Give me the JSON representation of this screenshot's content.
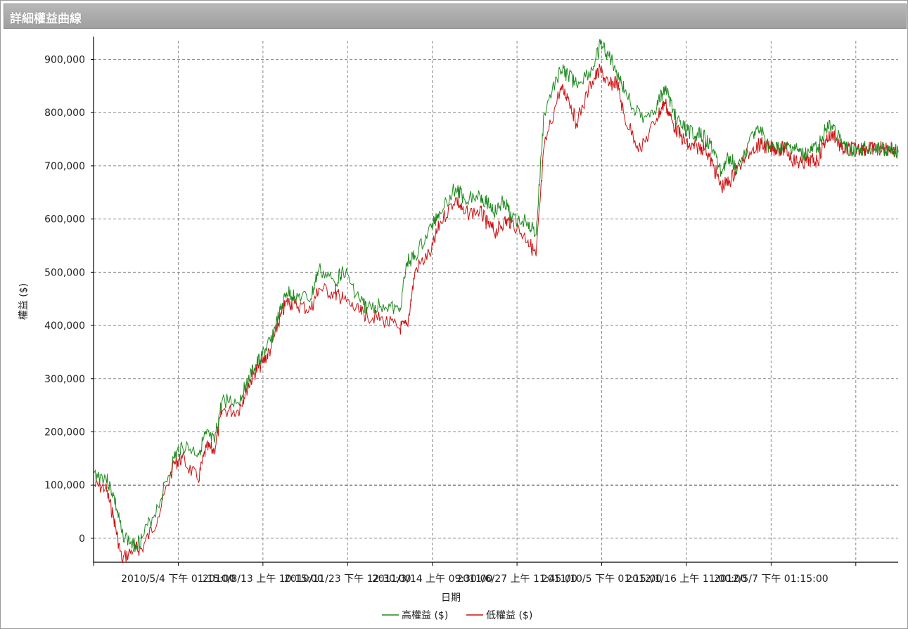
{
  "window": {
    "title": "詳細權益曲線"
  },
  "chart_data": {
    "type": "line",
    "xlabel": "日期",
    "ylabel": "權益 ($)",
    "ylim": [
      -45000,
      935000
    ],
    "yticks": [
      0,
      100000,
      200000,
      300000,
      400000,
      500000,
      600000,
      700000,
      800000,
      900000
    ],
    "ytick_labels": [
      "0",
      "100,000",
      "200,000",
      "300,000",
      "400,000",
      "500,000",
      "600,000",
      "700,000",
      "800,000",
      "900,000"
    ],
    "xtick_labels": [
      "2010/5/4 下午 01:15:00",
      "2010/8/13 上午 10:15:00",
      "2010/11/23 下午 12:30:00",
      "2011/3/14 上午 09:30:00",
      "2011/6/27 上午 11:45:00",
      "2011/10/5 下午 01:15:00",
      "2012/1/16 上午 11:00:00",
      "2012/5/7 下午 01:15:00"
    ],
    "grid": true,
    "legend": "bottom-center",
    "x_range": [
      0,
      100
    ],
    "series": [
      {
        "name": "高權益 ($)",
        "color": "#1e8a1e",
        "x": [
          0,
          1.5,
          2.5,
          3.5,
          5,
          6,
          8,
          10,
          11,
          13,
          14,
          15,
          16,
          18,
          19,
          20,
          21,
          22,
          23,
          24,
          25,
          27,
          28,
          30,
          31,
          33,
          34,
          36,
          38,
          39,
          40,
          42,
          43,
          45,
          46,
          48,
          49,
          50,
          51,
          52,
          54,
          55,
          56,
          58,
          59,
          60,
          62,
          63,
          64,
          65,
          66,
          68,
          70,
          71,
          72,
          73,
          74,
          75,
          76,
          77,
          78,
          79,
          80,
          82,
          83,
          84,
          85,
          86,
          87,
          88,
          89,
          90,
          91,
          92,
          93,
          94,
          95,
          96,
          97,
          98,
          99,
          100
        ],
        "values": [
          120000,
          115000,
          80000,
          10000,
          -15000,
          0,
          60000,
          150000,
          175000,
          160000,
          195000,
          180000,
          260000,
          255000,
          290000,
          320000,
          345000,
          370000,
          415000,
          462000,
          455000,
          450000,
          505000,
          480000,
          505000,
          450000,
          432000,
          440000,
          425000,
          520000,
          530000,
          585000,
          615000,
          658000,
          640000,
          645000,
          630000,
          612000,
          635000,
          600000,
          595000,
          570000,
          800000,
          880000,
          870000,
          855000,
          880000,
          928000,
          908000,
          880000,
          840000,
          790000,
          810000,
          850000,
          805000,
          775000,
          765000,
          760000,
          755000,
          730000,
          690000,
          718000,
          695000,
          760000,
          765000,
          732000,
          732000,
          732000,
          735000,
          720000,
          725000,
          735000,
          770000,
          775000,
          740000,
          732000,
          732000,
          732000,
          732000,
          732000,
          732000,
          725000
        ]
      },
      {
        "name": "低權益 ($)",
        "color": "#cc1111",
        "x": [
          0,
          1.5,
          2.5,
          3.5,
          5,
          6,
          8,
          10,
          11,
          13,
          14,
          15,
          16,
          18,
          19,
          20,
          21,
          22,
          23,
          24,
          25,
          27,
          28,
          30,
          31,
          33,
          34,
          36,
          38,
          39,
          40,
          42,
          43,
          45,
          46,
          48,
          49,
          50,
          51,
          52,
          54,
          55,
          56,
          58,
          59,
          60,
          62,
          63,
          64,
          65,
          66,
          68,
          70,
          71,
          72,
          73,
          74,
          75,
          76,
          77,
          78,
          79,
          80,
          82,
          83,
          84,
          85,
          86,
          87,
          88,
          89,
          90,
          91,
          92,
          93,
          94,
          95,
          96,
          97,
          98,
          99,
          100
        ],
        "values": [
          100000,
          95000,
          40000,
          -40000,
          -20000,
          -20000,
          40000,
          140000,
          150000,
          110000,
          170000,
          165000,
          240000,
          240000,
          280000,
          310000,
          330000,
          355000,
          405000,
          445000,
          440000,
          430000,
          470000,
          460000,
          450000,
          425000,
          420000,
          410000,
          395000,
          400000,
          505000,
          540000,
          590000,
          640000,
          610000,
          615000,
          590000,
          575000,
          595000,
          595000,
          560000,
          530000,
          735000,
          845000,
          830000,
          780000,
          860000,
          880000,
          850000,
          860000,
          790000,
          730000,
          790000,
          820000,
          780000,
          755000,
          735000,
          735000,
          735000,
          700000,
          660000,
          670000,
          695000,
          735000,
          740000,
          732000,
          732000,
          732000,
          710000,
          705000,
          710000,
          710000,
          750000,
          760000,
          730000,
          732000,
          732000,
          732000,
          732000,
          732000,
          732000,
          725000
        ]
      }
    ]
  }
}
